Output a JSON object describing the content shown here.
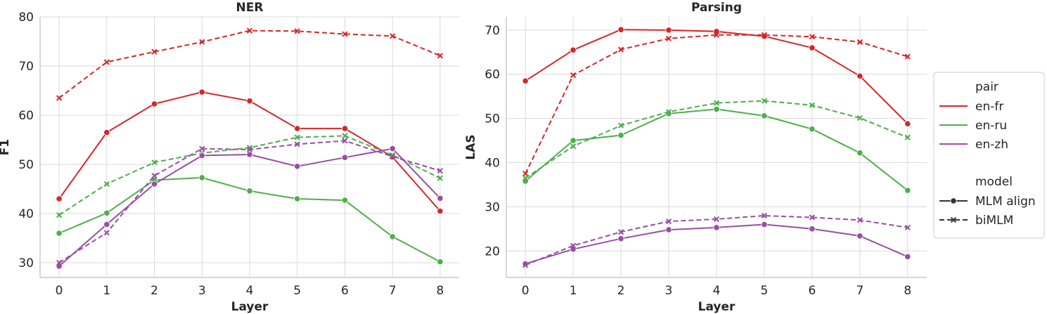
{
  "chart_data": [
    {
      "type": "line",
      "title": "NER",
      "xlabel": "Layer",
      "ylabel": "F1",
      "x": [
        0,
        1,
        2,
        3,
        4,
        5,
        6,
        7,
        8
      ],
      "xlim": [
        -0.4,
        8.4
      ],
      "ylim": [
        27,
        80
      ],
      "yticks": [
        30,
        40,
        50,
        60,
        70,
        80
      ],
      "grid": true,
      "series": [
        {
          "name": "en-fr",
          "model": "MLM align",
          "values": [
            43.0,
            56.5,
            62.3,
            64.7,
            62.9,
            57.3,
            57.3,
            51.5,
            40.5
          ]
        },
        {
          "name": "en-fr",
          "model": "biMLM",
          "values": [
            63.5,
            70.8,
            72.9,
            74.9,
            77.2,
            77.1,
            76.5,
            76.1,
            72.1
          ]
        },
        {
          "name": "en-ru",
          "model": "MLM align",
          "values": [
            36.0,
            40.1,
            46.8,
            47.3,
            44.6,
            43.0,
            42.7,
            35.3,
            30.2
          ]
        },
        {
          "name": "en-ru",
          "model": "biMLM",
          "values": [
            39.7,
            46.0,
            50.4,
            52.3,
            53.4,
            55.5,
            55.8,
            51.9,
            47.2
          ]
        },
        {
          "name": "en-zh",
          "model": "MLM align",
          "values": [
            29.3,
            37.8,
            46.0,
            51.8,
            52.0,
            49.6,
            51.4,
            53.2,
            43.1
          ]
        },
        {
          "name": "en-zh",
          "model": "biMLM",
          "values": [
            30.0,
            36.1,
            47.7,
            53.2,
            53.0,
            54.1,
            54.8,
            51.6,
            48.7
          ]
        }
      ]
    },
    {
      "type": "line",
      "title": "Parsing",
      "xlabel": "Layer",
      "ylabel": "LAS",
      "x": [
        0,
        1,
        2,
        3,
        4,
        5,
        6,
        7,
        8
      ],
      "xlim": [
        -0.4,
        8.4
      ],
      "ylim": [
        14,
        73
      ],
      "yticks": [
        20,
        30,
        40,
        50,
        60,
        70
      ],
      "grid": true,
      "series": [
        {
          "name": "en-fr",
          "model": "MLM align",
          "values": [
            58.5,
            65.5,
            70.1,
            70.0,
            69.7,
            68.6,
            66.0,
            59.6,
            48.8
          ]
        },
        {
          "name": "en-fr",
          "model": "biMLM",
          "values": [
            37.5,
            59.8,
            65.6,
            68.1,
            68.9,
            68.9,
            68.5,
            67.3,
            64.0
          ]
        },
        {
          "name": "en-ru",
          "model": "MLM align",
          "values": [
            35.8,
            45.0,
            46.2,
            51.1,
            52.1,
            50.6,
            47.6,
            42.2,
            33.7
          ]
        },
        {
          "name": "en-ru",
          "model": "biMLM",
          "values": [
            36.5,
            43.7,
            48.4,
            51.5,
            53.5,
            54.0,
            53.0,
            50.1,
            45.7
          ]
        },
        {
          "name": "en-zh",
          "model": "MLM align",
          "values": [
            17.1,
            20.4,
            22.8,
            24.8,
            25.3,
            26.0,
            25.0,
            23.4,
            18.7
          ]
        },
        {
          "name": "en-zh",
          "model": "biMLM",
          "values": [
            16.8,
            21.2,
            24.3,
            26.7,
            27.2,
            28.0,
            27.6,
            27.0,
            25.3
          ]
        }
      ]
    }
  ],
  "colors": {
    "en-fr": "#d62728",
    "en-ru": "#4daf4a",
    "en-zh": "#984ea3"
  },
  "legend": {
    "placement": "right",
    "pair_title": "pair",
    "pairs": [
      "en-fr",
      "en-ru",
      "en-zh"
    ],
    "model_title": "model",
    "models": [
      "MLM align",
      "biMLM"
    ]
  }
}
